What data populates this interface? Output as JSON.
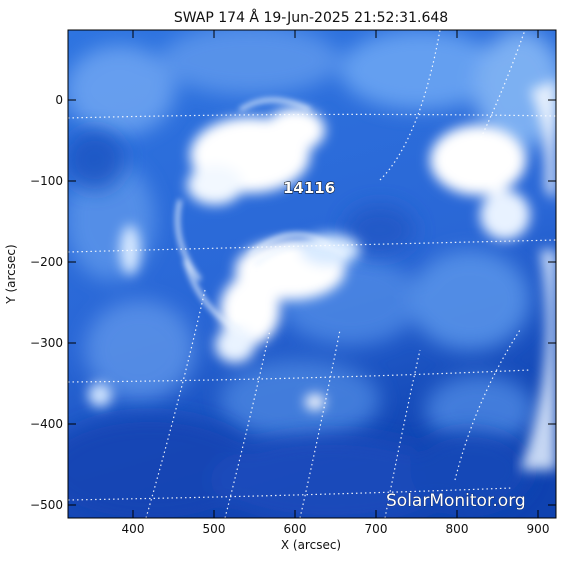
{
  "title": "SWAP 174 Å 19-Jun-2025 21:52:31.648",
  "region_number": "14116",
  "watermark": "SolarMonitor.org",
  "xaxis": {
    "label": "X (arcsec)",
    "ticks": [
      "400",
      "500",
      "600",
      "700",
      "800",
      "900"
    ]
  },
  "yaxis": {
    "label": "Y (arcsec)",
    "ticks": [
      "0",
      "−100",
      "−200",
      "−300",
      "−400",
      "−500"
    ]
  },
  "colors": {
    "deep_blue": "#0b3fae",
    "mid_blue": "#3b7fe6",
    "light_blue": "#9cc8ff",
    "highlight": "#ffffff",
    "grid": "#ffffff"
  }
}
